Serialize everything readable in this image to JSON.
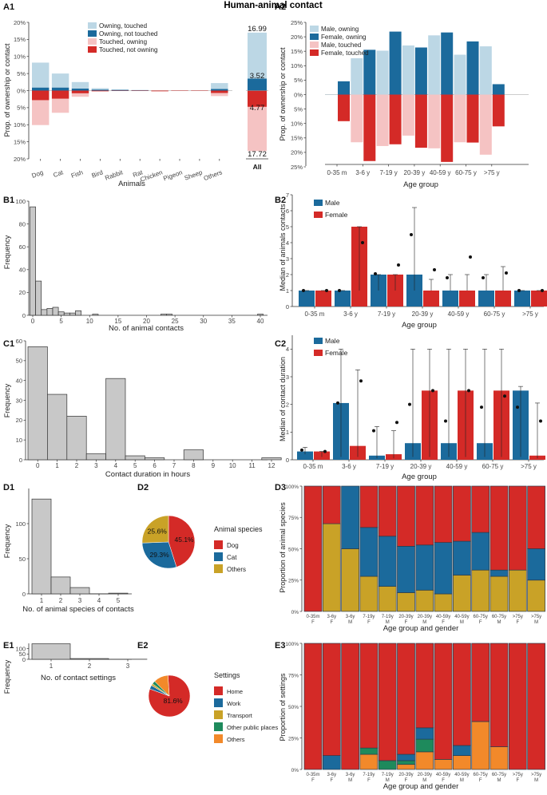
{
  "title": "Human-animal contact",
  "colors": {
    "light_blue": "#bcd7e5",
    "dark_blue": "#1b6a9c",
    "light_red": "#f5c3c3",
    "red": "#d42a27",
    "gold": "#c9a227",
    "orange": "#f2892a",
    "green": "#1e8a5c",
    "grey": "#c8c8c8",
    "bar_outline": "#333333"
  },
  "chart_data": [
    {
      "id": "A1",
      "type": "bar",
      "label": "A1",
      "categories": [
        "Dog",
        "Cat",
        "Fish",
        "Bird",
        "Rabbit",
        "Rat",
        "Chicken",
        "Pigeon",
        "Sheep",
        "Others"
      ],
      "series": [
        {
          "name": "Owning, touched",
          "values": [
            7.3,
            4.1,
            1.9,
            0.4,
            0.2,
            0.1,
            0.0,
            0.0,
            0.0,
            1.7
          ]
        },
        {
          "name": "Owning, not touched",
          "values": [
            0.9,
            0.9,
            0.6,
            0.3,
            0.2,
            0.1,
            0.0,
            0.0,
            0.0,
            0.5
          ]
        },
        {
          "name": "Touched, owning",
          "values": [
            7.3,
            4.1,
            1.0,
            0.1,
            0.0,
            0.0,
            0.0,
            0.0,
            0.0,
            0.9
          ]
        },
        {
          "name": "Touched, not owning",
          "values": [
            2.8,
            2.4,
            0.8,
            0.2,
            0.1,
            0.1,
            0.2,
            0.1,
            0.1,
            0.7
          ]
        }
      ],
      "ylabel": "Prop. of ownership or contact",
      "xlabel": "Animals",
      "ylim": [
        -20,
        20
      ],
      "yticks": [
        "20%",
        "15%",
        "10%",
        "5%",
        "0%",
        "5%",
        "10%",
        "15%",
        "20%"
      ],
      "all": {
        "label": "All",
        "top": 16.99,
        "mid": 3.52,
        "low": 4.77,
        "bottom": 17.72,
        "values": {
          "owning_touched": 13.47,
          "owning_not_touched": 3.52,
          "touched_owning": 12.95,
          "touched_not_owning": 4.77
        }
      }
    },
    {
      "id": "A2",
      "type": "bar",
      "label": "A2",
      "categories": [
        "0-35 m",
        "3-6 y",
        "7-19 y",
        "20-39 y",
        "40-59 y",
        "60-75 y",
        ">75 y"
      ],
      "series": [
        {
          "name": "Male, owning",
          "values": [
            0.1,
            12.6,
            15.2,
            17.0,
            20.5,
            13.8,
            16.7
          ]
        },
        {
          "name": "Female, owning",
          "values": [
            4.6,
            15.5,
            21.8,
            16.3,
            21.5,
            18.4,
            3.6
          ]
        },
        {
          "name": "Male, touched",
          "values": [
            0.0,
            16.5,
            17.8,
            14.2,
            18.6,
            16.5,
            20.8
          ]
        },
        {
          "name": "Female, touched",
          "values": [
            9.2,
            23.0,
            17.2,
            18.4,
            23.3,
            16.6,
            11.0
          ]
        }
      ],
      "ylabel": "Prop. of ownership or contact",
      "xlabel": "Age group",
      "ylim": [
        -25,
        25
      ],
      "yticks": [
        "25%",
        "20%",
        "15%",
        "10%",
        "5%",
        "0%",
        "5%",
        "10%",
        "15%",
        "20%",
        "25%"
      ]
    },
    {
      "id": "B1",
      "type": "bar",
      "label": "B1",
      "categories": [
        0,
        1,
        2,
        3,
        4,
        5,
        6,
        7,
        8,
        11,
        23,
        24,
        40
      ],
      "values": [
        95,
        30,
        5,
        6,
        7,
        3,
        2,
        2,
        4,
        1,
        1,
        1,
        1
      ],
      "xlabel": "No. of animal contacts",
      "ylabel": "Frequency",
      "xlim": [
        -0.5,
        41
      ],
      "ylim": [
        0,
        100
      ],
      "xticks": [
        "0",
        "5",
        "10",
        "15",
        "20",
        "25",
        "30",
        "35",
        "40"
      ],
      "yticks": [
        "0",
        "20",
        "40",
        "60",
        "80",
        "100"
      ]
    },
    {
      "id": "B2",
      "type": "bar",
      "label": "B2",
      "categories": [
        "0-35 m",
        "3-6 y",
        "7-19 y",
        "20-39 y",
        "40-59 y",
        "60-75 y",
        ">75 y"
      ],
      "series": [
        {
          "name": "Male",
          "values": [
            1,
            1,
            2,
            2,
            1,
            1,
            1
          ],
          "err_low": [
            1,
            1,
            1,
            1,
            1,
            1,
            1
          ],
          "err_high": [
            1,
            1,
            2,
            6.2,
            2,
            2,
            1
          ],
          "mean": [
            1,
            1,
            2.05,
            4.5,
            1.8,
            1.8,
            1
          ]
        },
        {
          "name": "Female",
          "values": [
            1,
            5,
            2,
            1,
            1,
            1,
            1
          ],
          "err_low": [
            1,
            1,
            1,
            1,
            1,
            1,
            1
          ],
          "err_high": [
            1,
            5,
            2,
            1.7,
            2,
            2.5,
            1
          ],
          "mean": [
            1,
            4,
            2.6,
            2.3,
            3.1,
            2.1,
            1
          ]
        }
      ],
      "xlabel": "Age group",
      "ylabel": "Median of animals contacts",
      "ylim": [
        0,
        7
      ],
      "yticks": [
        "0",
        "1",
        "2",
        "3",
        "4",
        "5",
        "6",
        "7"
      ]
    },
    {
      "id": "C1",
      "type": "bar",
      "label": "C1",
      "categories": [
        0,
        1,
        2,
        3,
        4,
        5,
        6,
        7,
        8,
        9,
        10,
        11,
        12
      ],
      "values": [
        57,
        33,
        22,
        3,
        41,
        2,
        1,
        0,
        5,
        0,
        0,
        0,
        1
      ],
      "xlabel": "Contact duration in hours",
      "ylabel": "Frequency",
      "ylim": [
        0,
        60
      ],
      "xticks": [
        "0",
        "1",
        "2",
        "3",
        "4",
        "5",
        "6",
        "7",
        "8",
        "9",
        "10",
        "11",
        "12"
      ],
      "yticks": [
        "0",
        "10",
        "20",
        "30",
        "40",
        "50",
        "60"
      ]
    },
    {
      "id": "C2",
      "type": "bar",
      "label": "C2",
      "categories": [
        "0-35 m",
        "3-6 y",
        "7-19 y",
        "20-39 y",
        "40-59 y",
        "60-75 y",
        ">75 y"
      ],
      "series": [
        {
          "name": "Male",
          "values": [
            0.3,
            2.05,
            0.15,
            0.6,
            0.6,
            0.6,
            2.5
          ],
          "err_low": [
            0.2,
            0.1,
            0.05,
            0.1,
            0.1,
            0.1,
            0.1
          ],
          "err_high": [
            0.45,
            4,
            1.2,
            4,
            4,
            4,
            2.65
          ],
          "mean": [
            0.35,
            2.05,
            1.05,
            2,
            1.4,
            1.9,
            1.9
          ]
        },
        {
          "name": "Female",
          "values": [
            0.3,
            0.5,
            0.2,
            2.5,
            2.5,
            2.5,
            0.15
          ],
          "err_low": [
            0.1,
            0.1,
            0.05,
            0.1,
            0.1,
            0.1,
            0.05
          ],
          "err_high": [
            0.3,
            3.25,
            1.05,
            4,
            4,
            4,
            2.05
          ],
          "mean": [
            0.3,
            2.85,
            1.35,
            2.5,
            2.5,
            2.3,
            1.4
          ]
        }
      ],
      "xlabel": "Age group",
      "ylabel": "Median of contact duration",
      "ylim": [
        0,
        4.5
      ],
      "yticks": [
        "0",
        "1",
        "2",
        "3",
        "4"
      ]
    },
    {
      "id": "D1",
      "type": "bar",
      "label": "D1",
      "categories": [
        1,
        2,
        3,
        4,
        5
      ],
      "values": [
        135,
        24,
        9,
        0,
        1
      ],
      "xlabel": "No. of animal species of contacts",
      "ylabel": "Frequency",
      "ylim": [
        0,
        150
      ],
      "xticks": [
        "1",
        "2",
        "3",
        "4",
        "5"
      ],
      "yticks": [
        "0",
        "50",
        "100"
      ]
    },
    {
      "id": "D2",
      "type": "pie",
      "label": "D2",
      "legend_title": "Animal species",
      "slices": [
        {
          "name": "Dog",
          "value": 45.1,
          "text": "45.1%"
        },
        {
          "name": "Cat",
          "value": 29.3,
          "text": "29.3%"
        },
        {
          "name": "Others",
          "value": 25.6,
          "text": "25.6%"
        }
      ]
    },
    {
      "id": "D3",
      "type": "bar",
      "label": "D3",
      "categories": [
        "0-35m\nF",
        "3-6y\nF",
        "3-6y\nM",
        "7-19y\nF",
        "7-19y\nM",
        "20-39y\nF",
        "20-39y\nM",
        "40-59y\nF",
        "40-59y\nM",
        "60-75y\nF",
        "60-75y\nM",
        ">75y\nF",
        ">75y\nM"
      ],
      "series": [
        {
          "name": "Others",
          "values": [
            0,
            70,
            50,
            28,
            20,
            15,
            17,
            14,
            29,
            33,
            28,
            33,
            25
          ]
        },
        {
          "name": "Cat",
          "values": [
            0,
            0,
            50,
            39,
            40,
            37,
            36,
            41,
            27,
            30,
            5,
            0,
            25
          ]
        },
        {
          "name": "Dog",
          "values": [
            100,
            30,
            0,
            33,
            40,
            48,
            47,
            45,
            44,
            37,
            67,
            67,
            50
          ]
        }
      ],
      "xlabel": "Age group and gender",
      "ylabel": "Proportion of animal species",
      "ylim": [
        0,
        100
      ],
      "yticks": [
        "0%",
        "25%",
        "50%",
        "75%",
        "100%"
      ]
    },
    {
      "id": "E1",
      "type": "bar",
      "label": "E1",
      "categories": [
        1,
        2,
        3
      ],
      "values": [
        146,
        7,
        1
      ],
      "xlabel": "No. of contact settings",
      "ylabel": "Frequency",
      "ylim": [
        0,
        150
      ],
      "xticks": [
        "1",
        "2",
        "3"
      ],
      "yticks": [
        "0",
        "50",
        "100"
      ]
    },
    {
      "id": "E2",
      "type": "pie",
      "label": "E2",
      "legend_title": "Settings",
      "slices": [
        {
          "name": "Home",
          "value": 81.6,
          "text": "81.6%"
        },
        {
          "name": "Work",
          "value": 3.0,
          "text": ""
        },
        {
          "name": "Transport",
          "value": 1.5,
          "text": ""
        },
        {
          "name": "Other public places",
          "value": 2.5,
          "text": ""
        },
        {
          "name": "Others",
          "value": 11.4,
          "text": ""
        }
      ]
    },
    {
      "id": "E3",
      "type": "bar",
      "label": "E3",
      "categories": [
        "0-35m\nF",
        "3-6y\nF",
        "3-6y\nM",
        "7-19y\nF",
        "7-19y\nM",
        "20-39y\nF",
        "20-39y\nM",
        "40-59y\nF",
        "40-59y\nM",
        "60-75y\nF",
        "60-75y\nM",
        ">75y\nF",
        ">75y\nM"
      ],
      "series": [
        {
          "name": "Others",
          "values": [
            0,
            0,
            0,
            12,
            0,
            4,
            14,
            8,
            11,
            38,
            18,
            0,
            0
          ]
        },
        {
          "name": "Other public places",
          "values": [
            0,
            0,
            0,
            5,
            7,
            3,
            10,
            0,
            0,
            0,
            0,
            0,
            0
          ]
        },
        {
          "name": "Transport",
          "values": [
            0,
            0,
            0,
            0,
            0,
            0,
            0,
            0,
            0,
            0,
            0,
            0,
            0
          ]
        },
        {
          "name": "Work",
          "values": [
            0,
            11,
            0,
            0,
            0,
            5,
            9,
            0,
            8,
            0,
            0,
            0,
            0
          ]
        },
        {
          "name": "Home",
          "values": [
            100,
            89,
            100,
            83,
            93,
            88,
            67,
            92,
            81,
            62,
            82,
            100,
            100
          ]
        }
      ],
      "xlabel": "Age group and gender",
      "ylabel": "Proportion of settings",
      "ylim": [
        0,
        100
      ],
      "yticks": [
        "0%",
        "25%",
        "50%",
        "75%",
        "100%"
      ]
    }
  ]
}
